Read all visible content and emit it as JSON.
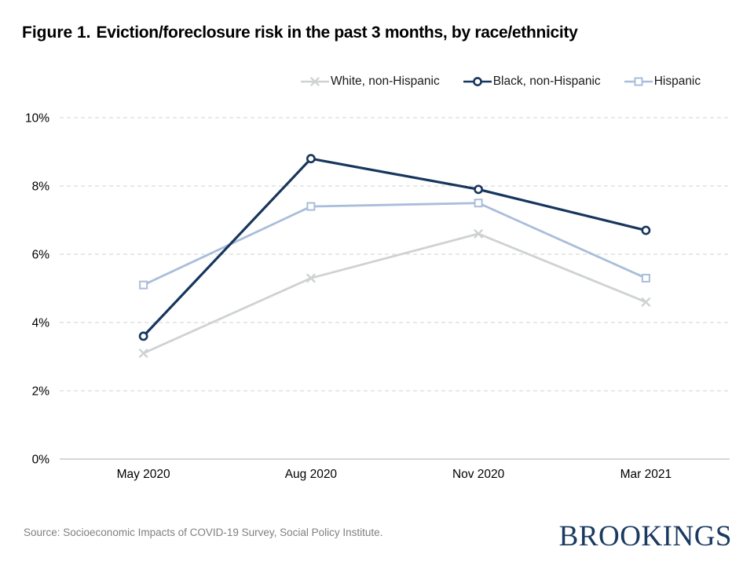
{
  "title": {
    "prefix": "Figure 1.",
    "text": "Eviction/foreclosure risk in the past 3 months, by race/ethnicity"
  },
  "footer": {
    "source": "Source: Socioeconomic Impacts of COVID-19 Survey, Social Policy Institute.",
    "brand": "BROOKINGS"
  },
  "colors": {
    "brand_navy": "#1B3A61",
    "grid_line": "#D9D9D9",
    "axis_line": "#BFBFBF",
    "tick_text": "#000000",
    "source_text": "#808080"
  },
  "chart_data": {
    "type": "line",
    "title": "Eviction/foreclosure risk in the past 3 months, by race/ethnicity",
    "categories": [
      "May 2020",
      "Aug 2020",
      "Nov 2020",
      "Mar 2021"
    ],
    "series": [
      {
        "name": "White, non-Hispanic",
        "values": [
          3.1,
          5.3,
          6.6,
          4.6
        ],
        "color": "#CFD2D3",
        "marker": "x",
        "line_width": 2.8
      },
      {
        "name": "Black, non-Hispanic",
        "values": [
          3.6,
          8.8,
          7.9,
          6.7
        ],
        "color": "#17365D",
        "marker": "circle",
        "line_width": 3.2
      },
      {
        "name": "Hispanic",
        "values": [
          5.1,
          7.4,
          7.5,
          5.3
        ],
        "color": "#A9BDDB",
        "marker": "square",
        "line_width": 2.8
      }
    ],
    "z_order": [
      0,
      2,
      1
    ],
    "xlabel": "",
    "ylabel": "",
    "ylim": [
      0,
      10
    ],
    "ytick_step": 2,
    "ytick_suffix": "%",
    "grid": "horizontal dashed, solid baseline at 0%",
    "legend_position": "top"
  }
}
